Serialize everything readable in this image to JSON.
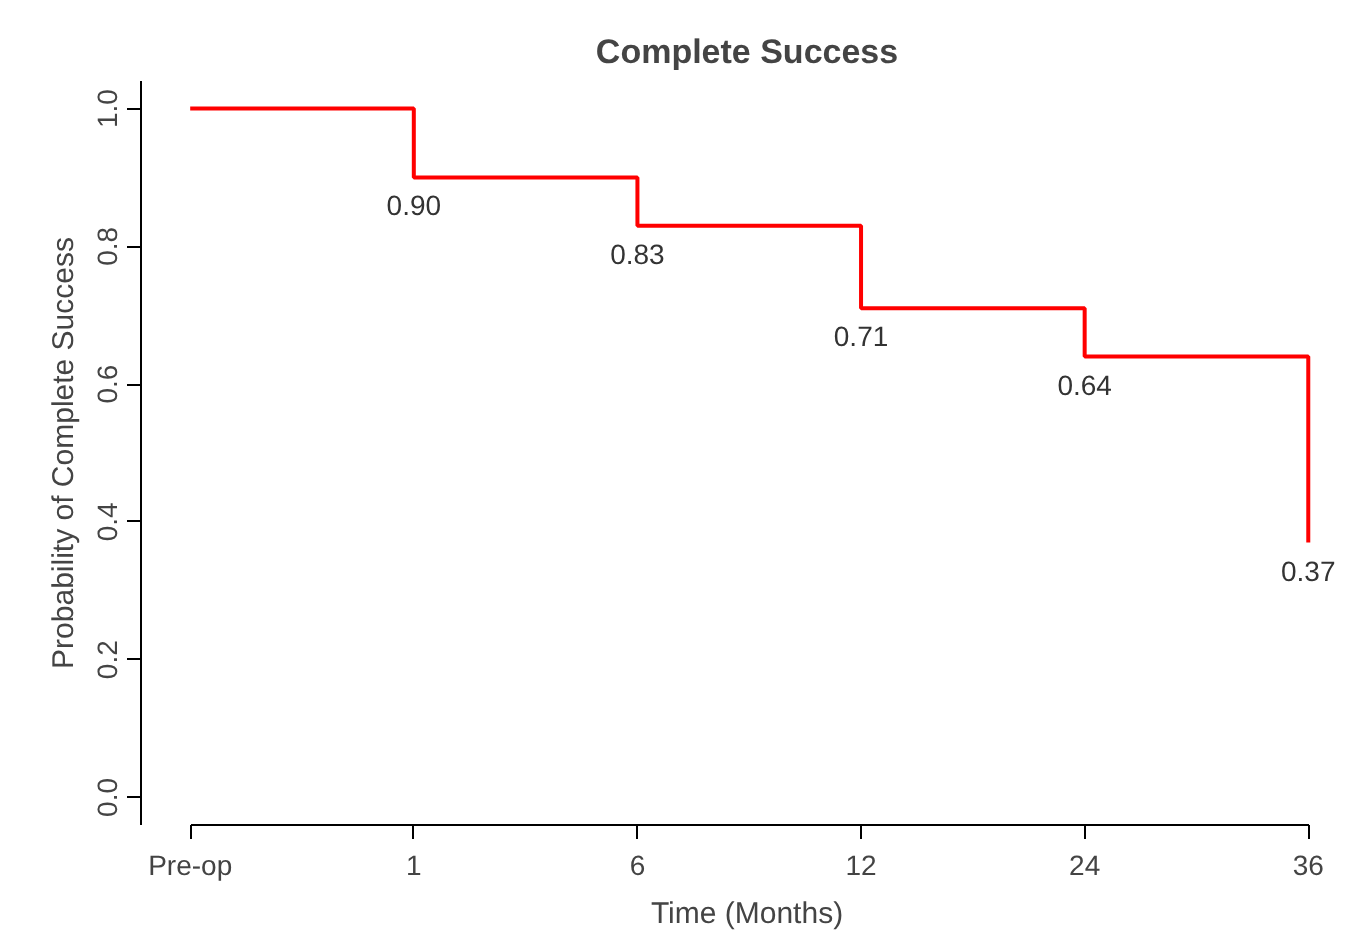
{
  "chart_data": {
    "type": "step",
    "title": "Complete Success",
    "xlabel": "Time (Months)",
    "ylabel": "Probability of Complete Success",
    "categories": [
      "Pre-op",
      "1",
      "6",
      "12",
      "24",
      "36"
    ],
    "series": [
      {
        "color": "#ff0000",
        "values": [
          1.0,
          0.9,
          0.83,
          0.71,
          0.64,
          0.37
        ],
        "value_labels": [
          null,
          "0.90",
          "0.83",
          "0.71",
          "0.64",
          "0.37"
        ]
      }
    ],
    "ylim": [
      -0.04,
      1.04
    ],
    "yticks": [
      {
        "value": 0,
        "label": "0.0"
      },
      {
        "value": 0.2,
        "label": "0.2"
      },
      {
        "value": 0.4,
        "label": "0.4"
      },
      {
        "value": 0.6,
        "label": "0.6"
      },
      {
        "value": 0.8,
        "label": "0.8"
      },
      {
        "value": 1,
        "label": "1.0"
      }
    ],
    "grid": false
  }
}
